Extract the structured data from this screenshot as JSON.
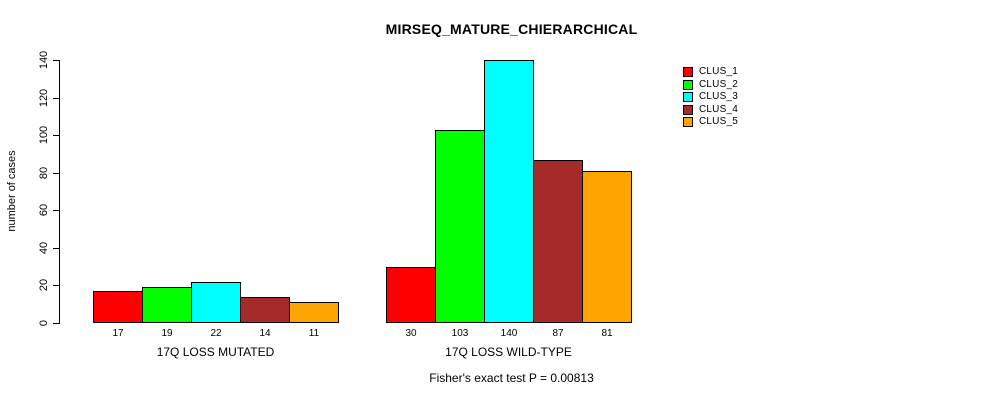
{
  "chart_data": {
    "type": "bar",
    "title": "MIRSEQ_MATURE_CHIERARCHICAL",
    "ylabel": "number of cases",
    "xlabel": "",
    "ylim": [
      0,
      140
    ],
    "yticks": [
      0,
      20,
      40,
      60,
      80,
      100,
      120,
      140
    ],
    "grid": false,
    "show_value_labels": true,
    "legend_position": "top-right",
    "categories": [
      "17Q LOSS MUTATED",
      "17Q LOSS WILD-TYPE"
    ],
    "series": [
      {
        "name": "CLUS_1",
        "color": "#FF0000",
        "values": [
          17,
          30
        ]
      },
      {
        "name": "CLUS_2",
        "color": "#00FF00",
        "values": [
          19,
          103
        ]
      },
      {
        "name": "CLUS_3",
        "color": "#00FFFF",
        "values": [
          22,
          140
        ]
      },
      {
        "name": "CLUS_4",
        "color": "#A52A2A",
        "values": [
          14,
          87
        ]
      },
      {
        "name": "CLUS_5",
        "color": "#FFA500",
        "values": [
          11,
          81
        ]
      }
    ],
    "annotation": "Fisher's exact test P = 0.00813"
  }
}
